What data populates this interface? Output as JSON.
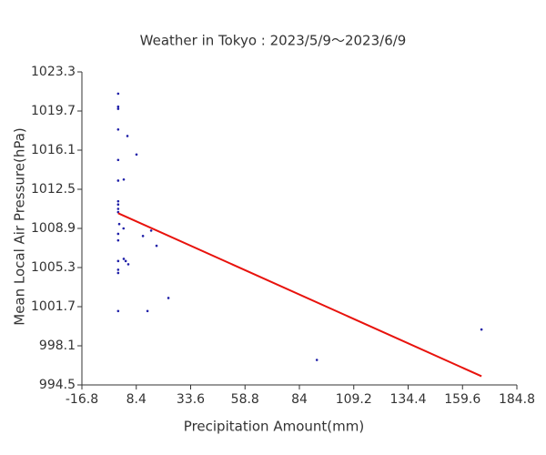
{
  "chart_data": {
    "type": "scatter",
    "title": "Weather in Tokyo : 2023/5/9～2023/6/9",
    "x_label": "Precipitation Amount(mm)",
    "y_label": "Mean Local Air Pressure(hPa)",
    "x": [
      0,
      0,
      0,
      0,
      4.3,
      8.5,
      0,
      2.6,
      0,
      0,
      0,
      0,
      0,
      0.5,
      2.5,
      15.3,
      0,
      11.5,
      0,
      17.8,
      0,
      2.6,
      3.5,
      4.7,
      0,
      0,
      23.3,
      0,
      13.6,
      168.4,
      92.1
    ],
    "values": [
      1021.3,
      1020.1,
      1019.9,
      1018.0,
      1017.4,
      1015.7,
      1015.2,
      1013.4,
      1013.3,
      1011.4,
      1011.1,
      1010.7,
      1010.4,
      1009.3,
      1008.9,
      1008.7,
      1008.4,
      1008.2,
      1007.8,
      1007.3,
      1005.9,
      1006.1,
      1005.9,
      1005.6,
      1005.1,
      1004.8,
      1002.5,
      1001.3,
      1001.3,
      999.6,
      996.8
    ],
    "color": "#1f1fa8",
    "trend": {
      "x": [
        0,
        168.4
      ],
      "values": [
        1010.3,
        995.3
      ],
      "color": "#e8120c"
    },
    "xlim": [
      -16.8,
      184.8
    ],
    "xticks": [
      -16.8,
      8.4,
      33.6,
      58.8,
      84,
      109.2,
      134.4,
      159.6,
      184.8
    ],
    "ylim": [
      994.5,
      1023.3
    ],
    "yticks": [
      994.5,
      998.1,
      1001.7,
      1005.3,
      1008.9,
      1012.5,
      1016.1,
      1019.7,
      1023.3
    ]
  }
}
